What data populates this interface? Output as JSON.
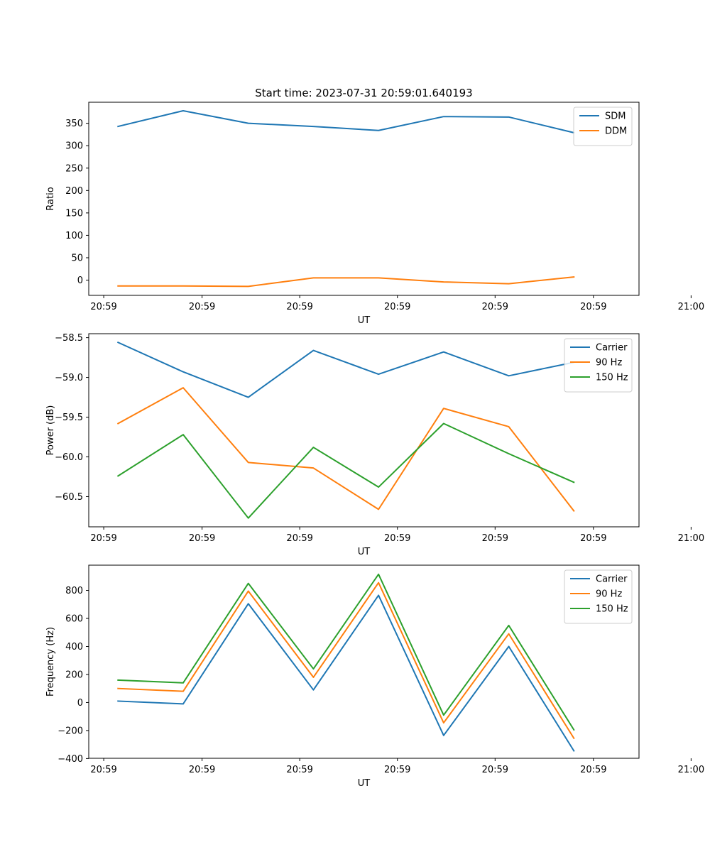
{
  "figure_title": "Start time: 2023-07-31 20:59:01.640193",
  "colors": {
    "blue": "#1f77b4",
    "orange": "#ff7f0e",
    "green": "#2ca02c"
  },
  "chart_data": [
    {
      "type": "line",
      "title": "Start time: 2023-07-31 20:59:01.640193",
      "xlabel": "UT",
      "ylabel": "Ratio",
      "x": [
        1,
        2,
        3,
        4,
        5,
        6,
        7,
        8
      ],
      "xlim": [
        0.55,
        9.0
      ],
      "ylim": [
        -34,
        397
      ],
      "xticks": [
        0.78,
        2.29,
        3.79,
        5.29,
        6.79,
        8.3,
        9.8
      ],
      "xtick_labels": [
        "20:59",
        "20:59",
        "20:59",
        "20:59",
        "20:59",
        "20:59",
        "21:00"
      ],
      "yticks": [
        0,
        50,
        100,
        150,
        200,
        250,
        300,
        350
      ],
      "ytick_labels": [
        "0",
        "50",
        "100",
        "150",
        "200",
        "250",
        "300",
        "350"
      ],
      "legend_position": "top-right",
      "series": [
        {
          "name": "SDM",
          "color": "#1f77b4",
          "values": [
            343,
            378,
            350,
            343,
            334,
            365,
            364,
            329
          ]
        },
        {
          "name": "DDM",
          "color": "#ff7f0e",
          "values": [
            -13,
            -13,
            -14,
            5,
            5,
            -4,
            -8,
            7
          ]
        }
      ]
    },
    {
      "type": "line",
      "title": "",
      "xlabel": "UT",
      "ylabel": "Power (dB)",
      "x": [
        1,
        2,
        3,
        4,
        5,
        6,
        7,
        8
      ],
      "xlim": [
        0.55,
        9.0
      ],
      "ylim": [
        -60.88,
        -58.45
      ],
      "xticks": [
        0.78,
        2.29,
        3.79,
        5.29,
        6.79,
        8.3,
        9.8
      ],
      "xtick_labels": [
        "20:59",
        "20:59",
        "20:59",
        "20:59",
        "20:59",
        "20:59",
        "21:00"
      ],
      "yticks": [
        -60.5,
        -60.0,
        -59.5,
        -59.0,
        -58.5
      ],
      "ytick_labels": [
        "−60.5",
        "−60.0",
        "−59.5",
        "−59.0",
        "−58.5"
      ],
      "legend_position": "top-right",
      "series": [
        {
          "name": "Carrier",
          "color": "#1f77b4",
          "values": [
            -58.56,
            -58.93,
            -59.25,
            -58.66,
            -58.96,
            -58.68,
            -58.98,
            -58.81
          ]
        },
        {
          "name": "90 Hz",
          "color": "#ff7f0e",
          "values": [
            -59.58,
            -59.13,
            -60.07,
            -60.14,
            -60.66,
            -59.39,
            -59.62,
            -60.68
          ]
        },
        {
          "name": "150 Hz",
          "color": "#2ca02c",
          "values": [
            -60.24,
            -59.72,
            -60.77,
            -59.88,
            -60.38,
            -59.58,
            -59.96,
            -60.32
          ]
        }
      ]
    },
    {
      "type": "line",
      "title": "",
      "xlabel": "UT",
      "ylabel": "Frequency (Hz)",
      "x": [
        1,
        2,
        3,
        4,
        5,
        6,
        7,
        8
      ],
      "xlim": [
        0.55,
        9.0
      ],
      "ylim": [
        -398,
        980
      ],
      "xticks": [
        0.78,
        2.29,
        3.79,
        5.29,
        6.79,
        8.3,
        9.8
      ],
      "xtick_labels": [
        "20:59",
        "20:59",
        "20:59",
        "20:59",
        "20:59",
        "20:59",
        "21:00"
      ],
      "yticks": [
        -400,
        -200,
        0,
        200,
        400,
        600,
        800
      ],
      "ytick_labels": [
        "−400",
        "−200",
        "0",
        "200",
        "400",
        "600",
        "800"
      ],
      "legend_position": "top-right",
      "series": [
        {
          "name": "Carrier",
          "color": "#1f77b4",
          "values": [
            10,
            -10,
            705,
            90,
            765,
            -235,
            400,
            -345
          ]
        },
        {
          "name": "90 Hz",
          "color": "#ff7f0e",
          "values": [
            100,
            80,
            795,
            180,
            855,
            -145,
            490,
            -255
          ]
        },
        {
          "name": "150 Hz",
          "color": "#2ca02c",
          "values": [
            160,
            140,
            850,
            240,
            915,
            -90,
            550,
            -195
          ]
        }
      ]
    }
  ]
}
